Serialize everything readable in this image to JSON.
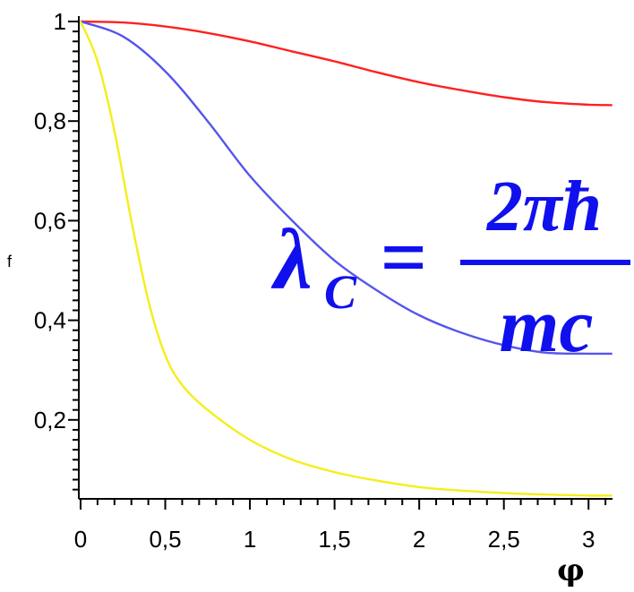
{
  "chart_data": {
    "type": "line",
    "xlabel": "φ",
    "ylabel": "f",
    "xlim": [
      0,
      3.1416
    ],
    "ylim": [
      0.036,
      1.0
    ],
    "x_ticks": [
      {
        "value": 0,
        "label": "0"
      },
      {
        "value": 0.5,
        "label": "0,5"
      },
      {
        "value": 1,
        "label": "1"
      },
      {
        "value": 1.5,
        "label": "1,5"
      },
      {
        "value": 2,
        "label": "2"
      },
      {
        "value": 2.5,
        "label": "2,5"
      },
      {
        "value": 3,
        "label": "3"
      }
    ],
    "y_ticks": [
      {
        "value": 0.2,
        "label": "0,2"
      },
      {
        "value": 0.4,
        "label": "0,4"
      },
      {
        "value": 0.6,
        "label": "0,6"
      },
      {
        "value": 0.8,
        "label": "0,8"
      },
      {
        "value": 1.0,
        "label": "1"
      }
    ],
    "grid": false,
    "series": [
      {
        "color": "#ff2020",
        "x": [
          0,
          0.25,
          0.5,
          0.75,
          1.0,
          1.25,
          1.5,
          1.75,
          2.0,
          2.25,
          2.5,
          2.75,
          3.0,
          3.14
        ],
        "y": [
          1.0,
          0.998,
          0.99,
          0.977,
          0.96,
          0.94,
          0.92,
          0.898,
          0.878,
          0.862,
          0.848,
          0.838,
          0.833,
          0.832
        ]
      },
      {
        "color": "#5555ee",
        "x": [
          0,
          0.25,
          0.5,
          0.75,
          1.0,
          1.25,
          1.5,
          1.75,
          2.0,
          2.25,
          2.5,
          2.75,
          3.0,
          3.14
        ],
        "y": [
          1.0,
          0.97,
          0.9,
          0.8,
          0.69,
          0.6,
          0.52,
          0.46,
          0.41,
          0.375,
          0.35,
          0.335,
          0.333,
          0.333
        ]
      },
      {
        "color": "#f5ee1a",
        "x": [
          0,
          0.1,
          0.2,
          0.3,
          0.4,
          0.5,
          0.6,
          0.75,
          1.0,
          1.25,
          1.5,
          1.75,
          2.0,
          2.25,
          2.5,
          2.75,
          3.0,
          3.14
        ],
        "y": [
          1.0,
          0.92,
          0.78,
          0.6,
          0.44,
          0.33,
          0.27,
          0.22,
          0.16,
          0.12,
          0.095,
          0.078,
          0.065,
          0.058,
          0.053,
          0.05,
          0.048,
          0.048
        ]
      }
    ]
  },
  "formula": {
    "lhs_symbol": "λ",
    "lhs_subscript": "C",
    "equals": "=",
    "numerator": "2πħ",
    "denominator": "mc"
  }
}
